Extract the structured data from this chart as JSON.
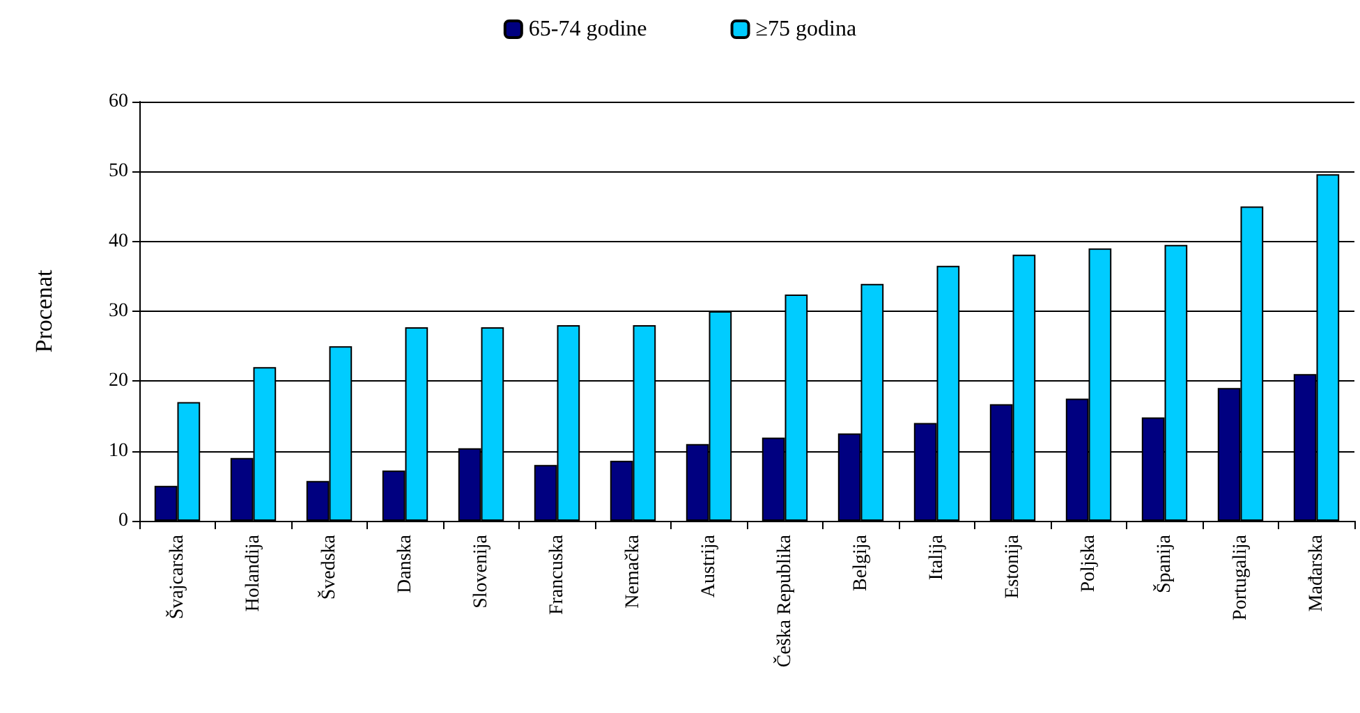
{
  "chart_data": {
    "type": "bar",
    "ylabel": "Procenat",
    "categories": [
      "Švajcarska",
      "Holandija",
      "Švedska",
      "Danska",
      "Slovenija",
      "Francuska",
      "Nemačka",
      "Austrija",
      "Češka Republika",
      "Belgija",
      "Italija",
      "Estonija",
      "Poljska",
      "Španija",
      "Portugalija",
      "Mađarska"
    ],
    "series": [
      {
        "name": "65-74 godine",
        "color": "#000080",
        "values": [
          5,
          9,
          5.7,
          7.2,
          10.4,
          8,
          8.6,
          11,
          11.9,
          12.5,
          14,
          16.7,
          17.5,
          14.8,
          19,
          21
        ]
      },
      {
        "name": "≥75 godina",
        "color": "#00ccff",
        "values": [
          17,
          22,
          25,
          27.7,
          27.7,
          28,
          28,
          30,
          32.4,
          33.9,
          36.5,
          38.1,
          39,
          39.5,
          45,
          49.6
        ]
      }
    ],
    "ylim": [
      0,
      60
    ],
    "yticks": [
      0,
      10,
      20,
      30,
      40,
      50,
      60
    ],
    "grid": "y",
    "legend": "top"
  }
}
